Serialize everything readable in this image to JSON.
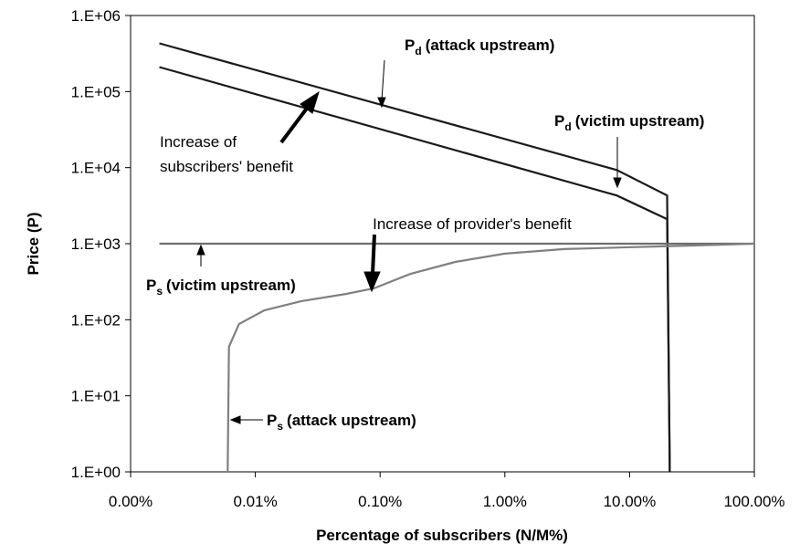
{
  "chart_data": {
    "type": "line",
    "ylabel": "Price (P)",
    "xlabel": "Percentage of subscribers (N/M%)",
    "xscale": "log",
    "yscale": "log",
    "xlim": [
      0.001,
      100
    ],
    "ylim": [
      1,
      1000000
    ],
    "xticks": [
      {
        "value": 0.001,
        "label": "0.00%"
      },
      {
        "value": 0.01,
        "label": "0.01%"
      },
      {
        "value": 0.1,
        "label": "0.10%"
      },
      {
        "value": 1,
        "label": "1.00%"
      },
      {
        "value": 10,
        "label": "10.00%"
      },
      {
        "value": 100,
        "label": "100.00%"
      }
    ],
    "yticks": [
      {
        "value": 1,
        "label": "1.E+00"
      },
      {
        "value": 10,
        "label": "1.E+01"
      },
      {
        "value": 100,
        "label": "1.E+02"
      },
      {
        "value": 1000,
        "label": "1.E+03"
      },
      {
        "value": 10000,
        "label": "1.E+04"
      },
      {
        "value": 100000,
        "label": "1.E+05"
      },
      {
        "value": 1000000,
        "label": "1.E+06"
      }
    ],
    "series": [
      {
        "color": "#1a1a1a",
        "x": [
          0.0017,
          7.9,
          20,
          21
        ],
        "values": [
          430000,
          9300,
          4300,
          1
        ]
      },
      {
        "color": "#1a1a1a",
        "x": [
          0.0017,
          7.9,
          20,
          21
        ],
        "values": [
          210000,
          4300,
          2100,
          1
        ]
      },
      {
        "color": "#6e6e6e",
        "x": [
          0.0017,
          100
        ],
        "values": [
          1000,
          1000
        ]
      },
      {
        "color": "#808080",
        "x": [
          0.006,
          0.00614,
          0.0074,
          0.0118,
          0.0232,
          0.0537,
          0.089,
          0.174,
          0.4,
          1,
          3,
          10.4,
          32,
          100
        ],
        "values": [
          1,
          44,
          88,
          133,
          175,
          219,
          258,
          400,
          575,
          740,
          850,
          900,
          945,
          1000
        ]
      }
    ],
    "annotations": [
      {
        "text": "P",
        "sub": "d",
        "label": "(attack upstream)"
      },
      {
        "text": "P",
        "sub": "d",
        "label": "(victim upstream)"
      },
      {
        "text": "Increase of"
      },
      {
        "text": "subscribers' benefit"
      },
      {
        "text": "Increase of provider's benefit"
      },
      {
        "text": "P",
        "sub": "s",
        "label": "(victim upstream)"
      },
      {
        "text": "P",
        "sub": "s",
        "label": "(attack upstream)"
      }
    ]
  }
}
